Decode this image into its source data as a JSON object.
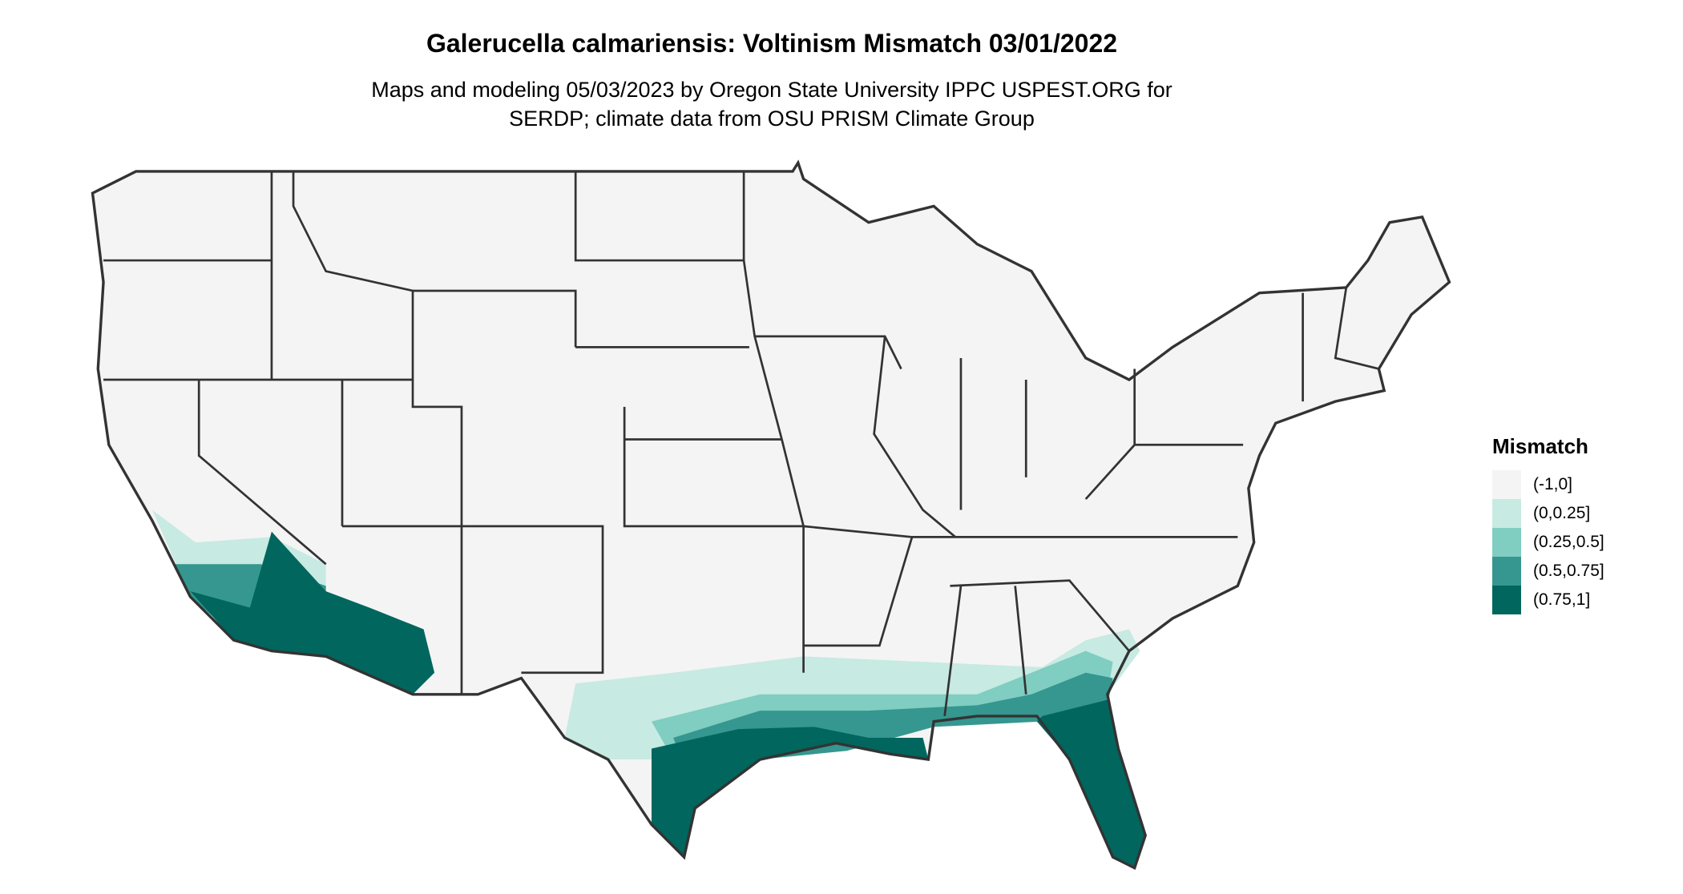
{
  "title": "Galerucella calmariensis: Voltinism Mismatch 03/01/2022",
  "subtitle_line1": "Maps and modeling 05/03/2023 by Oregon State University IPPC USPEST.ORG for",
  "subtitle_line2": "SERDP; climate data from OSU PRISM Climate Group",
  "legend": {
    "title": "Mismatch",
    "items": [
      {
        "label": "(-1,0]",
        "color": "#f4f4f4"
      },
      {
        "label": "(0,0.25]",
        "color": "#c7eae2"
      },
      {
        "label": "(0.25,0.5]",
        "color": "#80cdc1"
      },
      {
        "label": "(0.5,0.75]",
        "color": "#35978f"
      },
      {
        "label": "(0.75,1]",
        "color": "#01665e"
      }
    ]
  },
  "colors": {
    "border": "#333333",
    "land": "#f4f4f4"
  }
}
